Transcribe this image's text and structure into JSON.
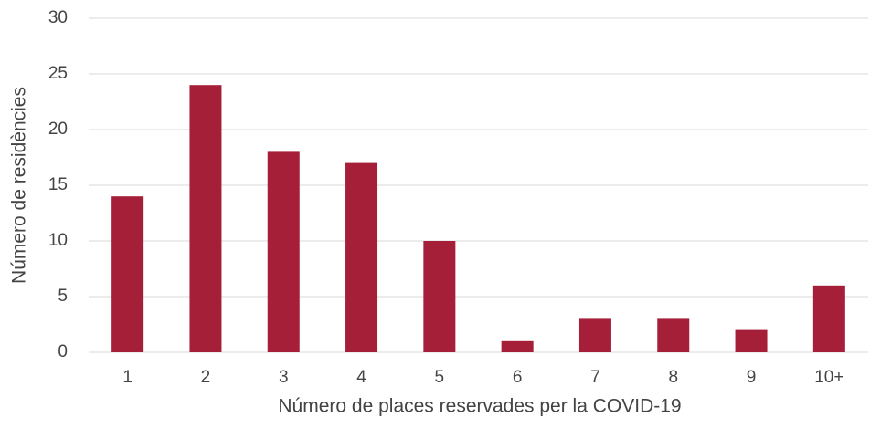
{
  "chart_data": {
    "type": "bar",
    "x_label": "Número de places reservades per la COVID-19",
    "y_label": "Número de residències",
    "categories": [
      "1",
      "2",
      "3",
      "4",
      "5",
      "6",
      "7",
      "8",
      "9",
      "10+"
    ],
    "values": [
      14,
      24,
      18,
      17,
      10,
      1,
      3,
      3,
      2,
      6
    ],
    "color": "#a51f38",
    "ylim": [
      0,
      30
    ],
    "yticks": [
      0,
      5,
      10,
      15,
      20,
      25,
      30
    ],
    "grid": true
  }
}
